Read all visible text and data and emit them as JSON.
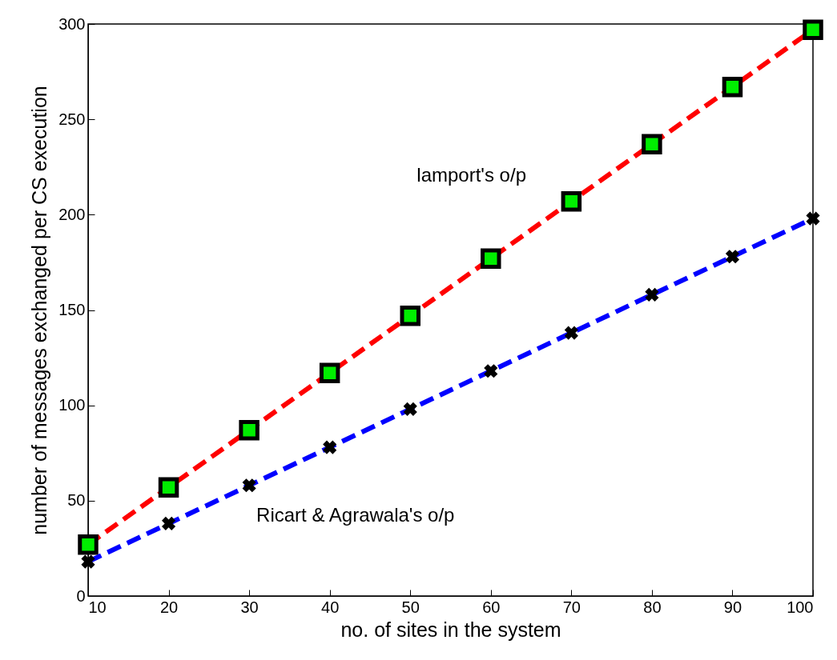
{
  "chart_data": {
    "type": "line",
    "xlabel": "no. of sites in the system",
    "ylabel": "number of messages exchanged per CS execution",
    "x": [
      10,
      20,
      30,
      40,
      50,
      60,
      70,
      80,
      90,
      100
    ],
    "series": [
      {
        "name": "lamport's o/p",
        "color": "#ff0000",
        "marker": "square",
        "line_style": "dashed",
        "values": [
          27,
          57,
          87,
          117,
          147,
          177,
          207,
          237,
          267,
          297
        ]
      },
      {
        "name": "Ricart & Agrawala's o/p",
        "color": "#0000ff",
        "marker": "cross",
        "line_style": "dashed",
        "values": [
          18,
          38,
          58,
          78,
          98,
          118,
          138,
          158,
          178,
          198
        ]
      }
    ],
    "xlim": [
      10,
      100
    ],
    "xticks": [
      10,
      20,
      30,
      40,
      50,
      60,
      70,
      80,
      90,
      100
    ],
    "ylim": [
      0,
      300
    ],
    "yticks": [
      0,
      50,
      100,
      150,
      200,
      250,
      300
    ],
    "grid": false
  }
}
